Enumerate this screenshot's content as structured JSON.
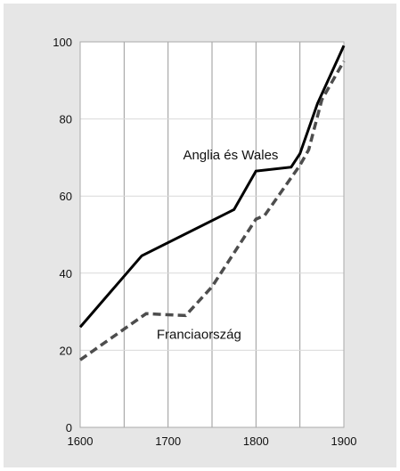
{
  "chart_data": {
    "type": "line",
    "title": "",
    "xlabel": "",
    "ylabel": "",
    "xlim": [
      1600,
      1900
    ],
    "ylim": [
      0,
      100
    ],
    "x_ticks": [
      "1600",
      "1700",
      "1800",
      "1900"
    ],
    "y_ticks": [
      "0",
      "20",
      "40",
      "60",
      "80",
      "100"
    ],
    "x_gridlines": [
      1650,
      1700,
      1750,
      1800,
      1850,
      1900
    ],
    "y_gridlines": [
      20,
      40,
      60,
      80,
      100
    ],
    "grid": true,
    "legend": "none",
    "series": [
      {
        "name": "Anglia és Wales",
        "style": "solid",
        "color": "#000000",
        "label_at": {
          "x": 1717,
          "y": 69.5
        },
        "points": [
          {
            "x": 1600,
            "y": 26
          },
          {
            "x": 1670,
            "y": 44.5
          },
          {
            "x": 1775,
            "y": 56.5
          },
          {
            "x": 1800,
            "y": 66.5
          },
          {
            "x": 1840,
            "y": 67.5
          },
          {
            "x": 1850,
            "y": 71
          },
          {
            "x": 1870,
            "y": 84
          },
          {
            "x": 1900,
            "y": 99
          }
        ]
      },
      {
        "name": "Franciaország",
        "style": "dashed",
        "color": "#4d4d4d",
        "label_at": {
          "x": 1687,
          "y": 23
        },
        "points": [
          {
            "x": 1600,
            "y": 17.5
          },
          {
            "x": 1650,
            "y": 25.5
          },
          {
            "x": 1675,
            "y": 29.5
          },
          {
            "x": 1720,
            "y": 29
          },
          {
            "x": 1750,
            "y": 36.5
          },
          {
            "x": 1800,
            "y": 54
          },
          {
            "x": 1810,
            "y": 55
          },
          {
            "x": 1850,
            "y": 68
          },
          {
            "x": 1860,
            "y": 72
          },
          {
            "x": 1875,
            "y": 85
          },
          {
            "x": 1900,
            "y": 95
          }
        ]
      }
    ]
  }
}
